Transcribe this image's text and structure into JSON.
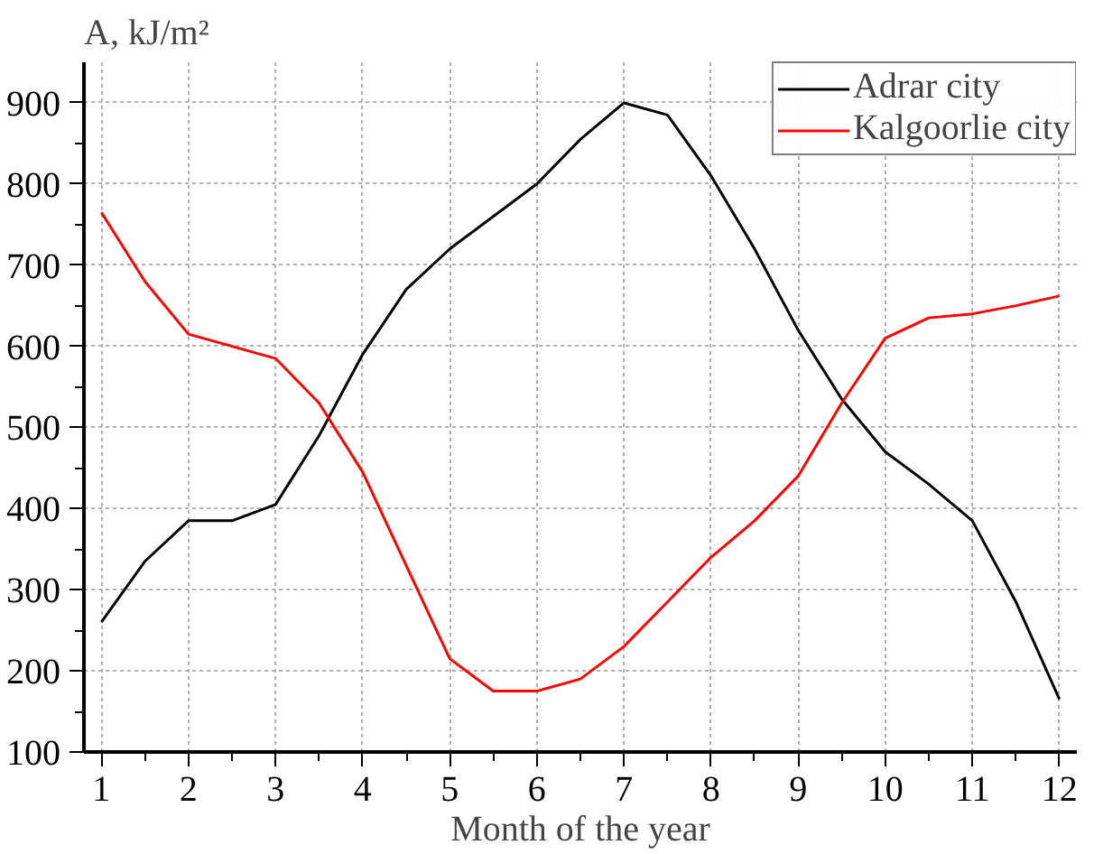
{
  "chart_data": {
    "type": "line",
    "xlabel": "Month of the year",
    "ylabel": "A, kJ/m²",
    "x": [
      1,
      1.5,
      2,
      2.5,
      3,
      3.5,
      4,
      4.5,
      5,
      5.5,
      6,
      6.5,
      7,
      7.5,
      8,
      8.5,
      9,
      9.5,
      10,
      10.5,
      11,
      11.5,
      12
    ],
    "series": [
      {
        "name": "Adrar city",
        "color": "#000000",
        "values": [
          260,
          335,
          385,
          385,
          405,
          490,
          590,
          670,
          720,
          760,
          800,
          855,
          900,
          885,
          810,
          720,
          620,
          535,
          470,
          430,
          385,
          285,
          165
        ]
      },
      {
        "name": "Kalgoorlie city",
        "color": "#ff0000",
        "values": [
          765,
          680,
          615,
          600,
          585,
          530,
          445,
          330,
          215,
          175,
          175,
          190,
          230,
          285,
          340,
          385,
          440,
          530,
          610,
          635,
          640,
          650,
          662
        ]
      }
    ],
    "xlim": [
      0.8,
      12.2
    ],
    "ylim": [
      100,
      950
    ],
    "xticks": [
      1,
      2,
      3,
      4,
      5,
      6,
      7,
      8,
      9,
      10,
      11,
      12
    ],
    "yticks": [
      100,
      200,
      300,
      400,
      500,
      600,
      700,
      800,
      900
    ],
    "grid": true,
    "legend": "top right",
    "marker": "none",
    "line_style": "solid"
  }
}
